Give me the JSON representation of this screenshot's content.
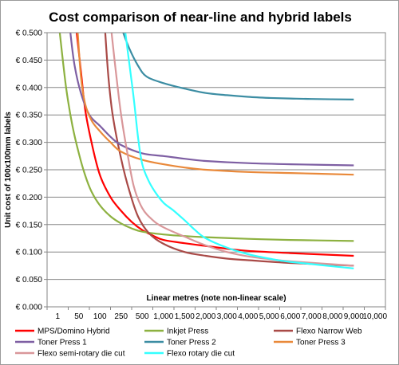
{
  "chart_data": {
    "type": "line",
    "title": "Cost comparison of near-line and hybrid labels",
    "xlabel": "Linear metres (note non-linear scale)",
    "ylabel": "Unit cost of 100x100mm labels",
    "x_scale": "categorical (non-linear)",
    "categories": [
      "1",
      "50",
      "100",
      "250",
      "500",
      "1,000",
      "1,500",
      "2,000",
      "3,000",
      "4,000",
      "5,000",
      "6,000",
      "7,000",
      "8,000",
      "9,000",
      "10,000"
    ],
    "ylim": [
      0,
      0.5
    ],
    "yticks": [
      "€ 0.000",
      "€ 0.050",
      "€ 0.100",
      "€ 0.150",
      "€ 0.200",
      "€ 0.250",
      "€ 0.300",
      "€ 0.350",
      "€ 0.400",
      "€ 0.450",
      "€ 0.500"
    ],
    "grid": "horizontal",
    "legend_position": "bottom",
    "series": [
      {
        "name": "MPS/Domino Hybrid",
        "color": "#ff0000",
        "x": [
          1.9,
          2.1,
          2.3,
          2.6,
          3.0,
          3.5,
          4.0,
          4.5,
          5.0,
          5.5,
          6.0,
          7.0,
          8.0,
          9.0,
          10.0,
          12.0,
          15.0
        ],
        "y": [
          0.5,
          0.43,
          0.36,
          0.3,
          0.24,
          0.2,
          0.175,
          0.155,
          0.14,
          0.13,
          0.122,
          0.116,
          0.111,
          0.106,
          0.102,
          0.098,
          0.093
        ]
      },
      {
        "name": "Inkjet Press",
        "color": "#8db140",
        "x": [
          1.1,
          1.4,
          1.7,
          2.0,
          2.3,
          2.6,
          3.0,
          3.5,
          4.0,
          4.5,
          5.0,
          6.0,
          7.0,
          8.0,
          10.0,
          12.0,
          15.0
        ],
        "y": [
          0.5,
          0.4,
          0.33,
          0.28,
          0.24,
          0.21,
          0.185,
          0.165,
          0.152,
          0.143,
          0.137,
          0.132,
          0.129,
          0.127,
          0.124,
          0.122,
          0.12
        ]
      },
      {
        "name": "Flexo Narrow Web",
        "color": "#a94a47",
        "x": [
          3.25,
          3.4,
          3.6,
          4.0,
          4.4,
          4.8,
          5.3,
          6.0,
          7.0,
          8.0,
          9.0,
          10.0,
          12.0,
          15.0
        ],
        "y": [
          0.5,
          0.42,
          0.35,
          0.27,
          0.21,
          0.165,
          0.135,
          0.115,
          0.1,
          0.093,
          0.088,
          0.085,
          0.08,
          0.075
        ]
      },
      {
        "name": "Toner Press 1",
        "color": "#7e5fa3",
        "x": [
          1.6,
          1.8,
          2.1,
          2.5,
          3.0,
          3.5,
          4.0,
          5.0,
          6.0,
          7.0,
          8.0,
          10.0,
          12.0,
          15.0
        ],
        "y": [
          0.5,
          0.44,
          0.39,
          0.35,
          0.33,
          0.31,
          0.295,
          0.28,
          0.275,
          0.27,
          0.266,
          0.262,
          0.26,
          0.258
        ]
      },
      {
        "name": "Toner Press 2",
        "color": "#3c8da3",
        "x": [
          4.1,
          4.4,
          4.8,
          5.2,
          6.0,
          7.0,
          8.0,
          9.0,
          10.0,
          11.0,
          12.0,
          13.0,
          15.0
        ],
        "y": [
          0.5,
          0.47,
          0.44,
          0.42,
          0.408,
          0.398,
          0.39,
          0.386,
          0.383,
          0.381,
          0.38,
          0.379,
          0.378
        ]
      },
      {
        "name": "Toner Press 3",
        "color": "#e9893a",
        "x": [
          1.95,
          2.1,
          2.3,
          2.6,
          3.0,
          3.5,
          4.0,
          5.0,
          6.0,
          7.0,
          8.0,
          10.0,
          12.0,
          15.0
        ],
        "y": [
          0.5,
          0.42,
          0.37,
          0.34,
          0.32,
          0.3,
          0.283,
          0.268,
          0.26,
          0.254,
          0.25,
          0.246,
          0.244,
          0.241
        ]
      },
      {
        "name": "Flexo semi-rotary die cut",
        "color": "#d9979a",
        "x": [
          3.55,
          3.75,
          4.0,
          4.3,
          4.6,
          5.0,
          5.5,
          6.0,
          7.0,
          8.0,
          9.0,
          10.0,
          11.0,
          12.0,
          15.0
        ],
        "y": [
          0.5,
          0.43,
          0.35,
          0.28,
          0.22,
          0.18,
          0.158,
          0.145,
          0.128,
          0.112,
          0.1,
          0.092,
          0.087,
          0.083,
          0.075
        ]
      },
      {
        "name": "Flexo rotary die cut",
        "color": "#33ffff",
        "x": [
          4.2,
          4.4,
          4.6,
          4.8,
          5.0,
          5.3,
          5.6,
          6.0,
          6.5,
          7.0,
          7.5,
          8.0,
          9.0,
          10.0,
          11.0,
          12.0,
          15.0
        ],
        "y": [
          0.5,
          0.44,
          0.38,
          0.31,
          0.26,
          0.23,
          0.21,
          0.19,
          0.175,
          0.158,
          0.14,
          0.125,
          0.108,
          0.096,
          0.088,
          0.082,
          0.07
        ]
      }
    ]
  }
}
